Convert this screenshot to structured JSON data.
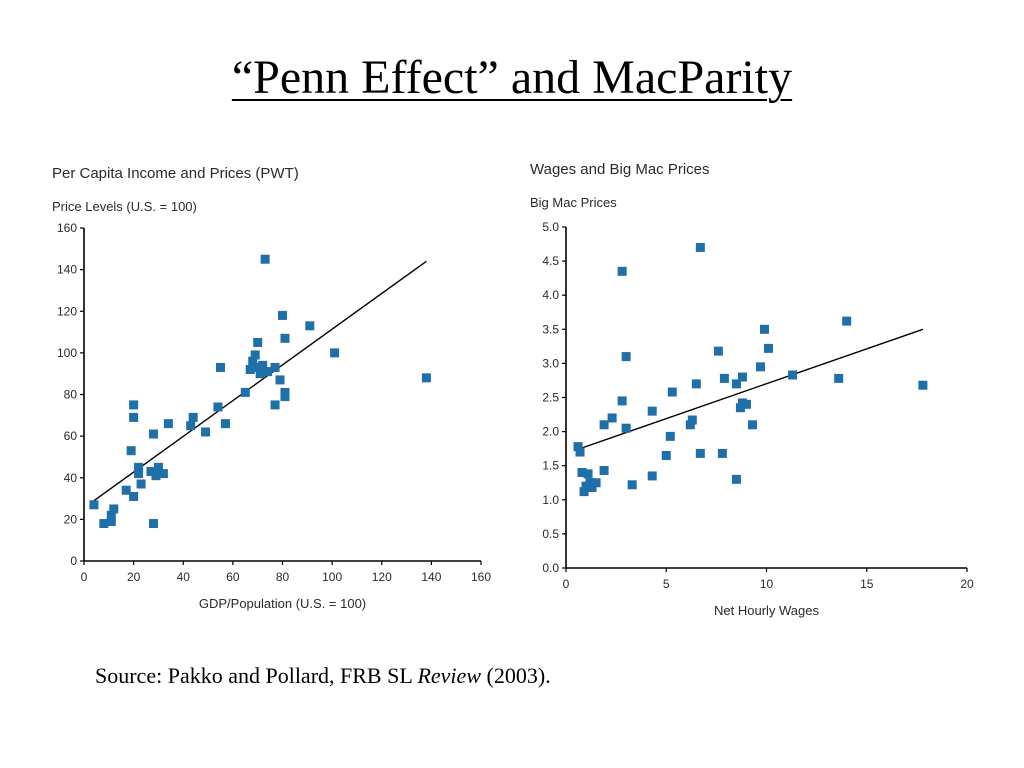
{
  "slide": {
    "title": "“Penn Effect” and MacParity",
    "source_prefix": "Source: Pakko and Pollard, FRB SL ",
    "source_italic": "Review",
    "source_suffix": " (2003)."
  },
  "colors": {
    "marker": "#1f6fa8",
    "axis": "#000000",
    "fit_line": "#000000",
    "text": "#2a2a2a"
  },
  "chart_data": [
    {
      "type": "scatter",
      "title": "Per Capita Income and Prices (PWT)",
      "ylabel": "Price Levels (U.S. = 100)",
      "xlabel": "GDP/Population (U.S. = 100)",
      "xlim": [
        0,
        160
      ],
      "ylim": [
        0,
        160
      ],
      "xticks": [
        0,
        20,
        40,
        60,
        80,
        100,
        120,
        140,
        160
      ],
      "yticks": [
        0,
        20,
        40,
        60,
        80,
        100,
        120,
        140,
        160
      ],
      "trend_line": {
        "x": [
          4,
          138
        ],
        "y": [
          29,
          144
        ]
      },
      "points": [
        {
          "x": 4,
          "y": 27
        },
        {
          "x": 8,
          "y": 18
        },
        {
          "x": 11,
          "y": 19
        },
        {
          "x": 11,
          "y": 22
        },
        {
          "x": 12,
          "y": 25
        },
        {
          "x": 17,
          "y": 34
        },
        {
          "x": 19,
          "y": 53
        },
        {
          "x": 20,
          "y": 31
        },
        {
          "x": 20,
          "y": 69
        },
        {
          "x": 20,
          "y": 75
        },
        {
          "x": 22,
          "y": 42
        },
        {
          "x": 22,
          "y": 45
        },
        {
          "x": 23,
          "y": 37
        },
        {
          "x": 27,
          "y": 43
        },
        {
          "x": 28,
          "y": 61
        },
        {
          "x": 28,
          "y": 18
        },
        {
          "x": 29,
          "y": 41
        },
        {
          "x": 30,
          "y": 45
        },
        {
          "x": 32,
          "y": 42
        },
        {
          "x": 34,
          "y": 66
        },
        {
          "x": 43,
          "y": 65
        },
        {
          "x": 44,
          "y": 69
        },
        {
          "x": 49,
          "y": 62
        },
        {
          "x": 54,
          "y": 74
        },
        {
          "x": 55,
          "y": 93
        },
        {
          "x": 57,
          "y": 66
        },
        {
          "x": 65,
          "y": 81
        },
        {
          "x": 67,
          "y": 92
        },
        {
          "x": 68,
          "y": 96
        },
        {
          "x": 69,
          "y": 99
        },
        {
          "x": 69,
          "y": 93
        },
        {
          "x": 70,
          "y": 105
        },
        {
          "x": 71,
          "y": 90
        },
        {
          "x": 72,
          "y": 94
        },
        {
          "x": 73,
          "y": 145
        },
        {
          "x": 74,
          "y": 91
        },
        {
          "x": 77,
          "y": 75
        },
        {
          "x": 77,
          "y": 93
        },
        {
          "x": 79,
          "y": 87
        },
        {
          "x": 80,
          "y": 118
        },
        {
          "x": 81,
          "y": 107
        },
        {
          "x": 81,
          "y": 81
        },
        {
          "x": 81,
          "y": 79
        },
        {
          "x": 91,
          "y": 113
        },
        {
          "x": 101,
          "y": 100
        },
        {
          "x": 138,
          "y": 88
        }
      ]
    },
    {
      "type": "scatter",
      "title": "Wages and Big Mac Prices",
      "ylabel": "Big Mac Prices",
      "xlabel": "Net Hourly Wages",
      "xlim": [
        0,
        20
      ],
      "ylim": [
        0,
        5
      ],
      "xticks": [
        0,
        5,
        10,
        15,
        20
      ],
      "yticks": [
        "0.0",
        "0.5",
        "1.0",
        "1.5",
        "2.0",
        "2.5",
        "3.0",
        "3.5",
        "4.0",
        "4.5",
        "5.0"
      ],
      "trend_line": {
        "x": [
          0.5,
          17.8
        ],
        "y": [
          1.73,
          3.5
        ]
      },
      "points": [
        {
          "x": 0.6,
          "y": 1.78
        },
        {
          "x": 0.7,
          "y": 1.7
        },
        {
          "x": 0.8,
          "y": 1.4
        },
        {
          "x": 0.9,
          "y": 1.12
        },
        {
          "x": 1.0,
          "y": 1.2
        },
        {
          "x": 1.1,
          "y": 1.38
        },
        {
          "x": 1.2,
          "y": 1.25
        },
        {
          "x": 1.3,
          "y": 1.18
        },
        {
          "x": 1.5,
          "y": 1.25
        },
        {
          "x": 1.9,
          "y": 1.43
        },
        {
          "x": 1.9,
          "y": 2.1
        },
        {
          "x": 2.3,
          "y": 2.2
        },
        {
          "x": 2.8,
          "y": 2.45
        },
        {
          "x": 2.8,
          "y": 4.35
        },
        {
          "x": 3.0,
          "y": 3.1
        },
        {
          "x": 3.0,
          "y": 2.05
        },
        {
          "x": 3.3,
          "y": 1.22
        },
        {
          "x": 4.3,
          "y": 1.35
        },
        {
          "x": 4.3,
          "y": 2.3
        },
        {
          "x": 5.0,
          "y": 1.65
        },
        {
          "x": 5.2,
          "y": 1.93
        },
        {
          "x": 5.3,
          "y": 2.58
        },
        {
          "x": 6.2,
          "y": 2.1
        },
        {
          "x": 6.3,
          "y": 2.17
        },
        {
          "x": 6.5,
          "y": 2.7
        },
        {
          "x": 6.7,
          "y": 1.68
        },
        {
          "x": 6.7,
          "y": 4.7
        },
        {
          "x": 7.6,
          "y": 3.18
        },
        {
          "x": 7.8,
          "y": 1.68
        },
        {
          "x": 7.9,
          "y": 2.78
        },
        {
          "x": 8.5,
          "y": 1.3
        },
        {
          "x": 8.5,
          "y": 2.7
        },
        {
          "x": 8.7,
          "y": 2.35
        },
        {
          "x": 8.8,
          "y": 2.8
        },
        {
          "x": 8.8,
          "y": 2.42
        },
        {
          "x": 9.0,
          "y": 2.4
        },
        {
          "x": 9.3,
          "y": 2.1
        },
        {
          "x": 9.7,
          "y": 2.95
        },
        {
          "x": 9.9,
          "y": 3.5
        },
        {
          "x": 10.1,
          "y": 3.22
        },
        {
          "x": 11.3,
          "y": 2.83
        },
        {
          "x": 13.6,
          "y": 2.78
        },
        {
          "x": 14.0,
          "y": 3.62
        },
        {
          "x": 17.8,
          "y": 2.68
        }
      ]
    }
  ]
}
